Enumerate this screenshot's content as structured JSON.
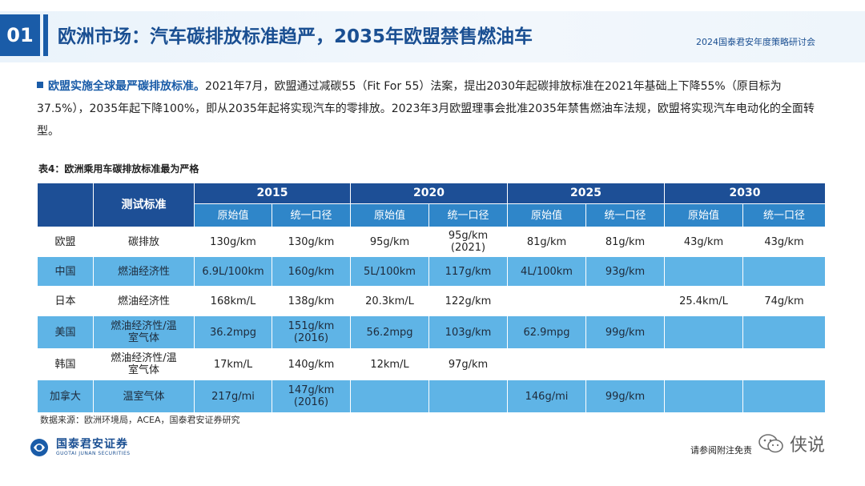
{
  "header": {
    "section_number": "01",
    "title": "欧洲市场：汽车碳排放标准趋严，2035年欧盟禁售燃油车",
    "event_name": "2024国泰君安年度策略研讨会"
  },
  "paragraph": {
    "lead": "欧盟实施全球最严碳排放标准。",
    "body": "2021年7月，欧盟通过减碳55（Fit For 55）法案，提出2030年起碳排放标准在2021年基础上下降55%（原目标为37.5%），2035年起下降100%，即从2035年起将实现汽车的零排放。2023年3月欧盟理事会批准2035年禁售燃油车法规，欧盟将实现汽车电动化的全面转型。"
  },
  "table": {
    "caption": "表4：欧洲乘用车碳排放标准最为严格",
    "standard_header": "测试标准",
    "years": [
      "2015",
      "2020",
      "2025",
      "2030"
    ],
    "sub_headers": [
      "原始值",
      "统一口径",
      "原始值",
      "统一口径",
      "原始值",
      "统一口径",
      "原始值",
      "统一口径"
    ],
    "rows": [
      {
        "region": "欧盟",
        "standard": "碳排放",
        "cells": [
          "130g/km",
          "130g/km",
          "95g/km",
          "95g/km\n(2021)",
          "81g/km",
          "81g/km",
          "43g/km",
          "43g/km"
        ]
      },
      {
        "region": "中国",
        "standard": "燃油经济性",
        "cells": [
          "6.9L/100km",
          "160g/km",
          "5L/100km",
          "117g/km",
          "4L/100km",
          "93g/km",
          "",
          ""
        ]
      },
      {
        "region": "日本",
        "standard": "燃油经济性",
        "cells": [
          "168km/L",
          "138g/km",
          "20.3km/L",
          "122g/km",
          "",
          "",
          "25.4km/L",
          "74g/km"
        ]
      },
      {
        "region": "美国",
        "standard": "燃油经济性/温\n室气体",
        "cells": [
          "36.2mpg",
          "151g/km\n(2016)",
          "56.2mpg",
          "103g/km",
          "62.9mpg",
          "99g/km",
          "",
          ""
        ]
      },
      {
        "region": "韩国",
        "standard": "燃油经济性/温\n室气体",
        "cells": [
          "17km/L",
          "140g/km",
          "12km/L",
          "97g/km",
          "",
          "",
          "",
          ""
        ]
      },
      {
        "region": "加拿大",
        "standard": "温室气体",
        "cells": [
          "217g/mi",
          "147g/km\n(2016)",
          "",
          "",
          "146g/mi",
          "99g/km",
          "",
          ""
        ]
      }
    ]
  },
  "source": "数据来源：欧洲环境局，ACEA，国泰君安证券研究",
  "footer": {
    "logo_cn": "国泰君安证券",
    "logo_en": "GUOTAI JUNAN SECURITIES",
    "disclaimer": "请参阅附注免责",
    "watermark": "侠说"
  },
  "colors": {
    "brand_blue": "#1a5ca8",
    "header_dark": "#1d4f96",
    "subheader": "#2f86c9",
    "row_highlight": "#5fb4e6"
  }
}
